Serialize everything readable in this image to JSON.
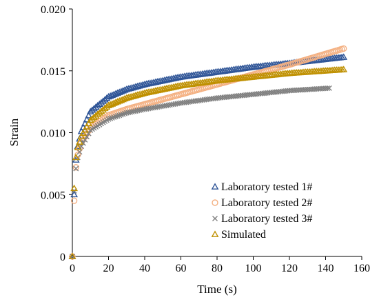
{
  "chart_data": {
    "type": "scatter",
    "xlabel": "Time (s)",
    "ylabel": "Strain",
    "xlim": [
      0,
      160
    ],
    "ylim": [
      0,
      0.02
    ],
    "x_ticks": [
      "0",
      "20",
      "40",
      "60",
      "80",
      "100",
      "120",
      "140",
      "160"
    ],
    "y_ticks": [
      "0",
      "0.005",
      "0.010",
      "0.015",
      "0.020"
    ],
    "grid": false,
    "legend_position": "bottom-right",
    "series": [
      {
        "name": "Laboratory tested 1#",
        "marker": "triangle",
        "color": "#2f5597",
        "x": [
          0,
          1,
          2,
          3,
          5,
          10,
          20,
          30,
          40,
          60,
          80,
          100,
          120,
          150
        ],
        "y": [
          0,
          0.005,
          0.0078,
          0.0089,
          0.0101,
          0.0117,
          0.0129,
          0.0135,
          0.0139,
          0.0145,
          0.0149,
          0.0153,
          0.0156,
          0.0161
        ]
      },
      {
        "name": "Laboratory tested 2#",
        "marker": "circle",
        "color": "#f4b183",
        "x": [
          0,
          1,
          2,
          3,
          5,
          10,
          20,
          30,
          40,
          60,
          80,
          100,
          120,
          150
        ],
        "y": [
          0,
          0.0045,
          0.0072,
          0.0082,
          0.0092,
          0.0104,
          0.0114,
          0.0119,
          0.0123,
          0.0131,
          0.0139,
          0.0147,
          0.0155,
          0.0168
        ]
      },
      {
        "name": "Laboratory tested 3#",
        "marker": "x",
        "color": "#7f7f7f",
        "x": [
          0,
          1,
          2,
          3,
          5,
          10,
          20,
          30,
          40,
          60,
          80,
          100,
          120,
          142
        ],
        "y": [
          0,
          0.0053,
          0.0071,
          0.008,
          0.0089,
          0.0102,
          0.0111,
          0.0116,
          0.0119,
          0.0124,
          0.0128,
          0.0131,
          0.0134,
          0.0136
        ]
      },
      {
        "name": "Simulated",
        "marker": "triangle",
        "color": "#bf9000",
        "x": [
          0,
          1,
          2,
          3,
          5,
          10,
          20,
          30,
          40,
          60,
          80,
          100,
          120,
          150
        ],
        "y": [
          0,
          0.0055,
          0.008,
          0.0088,
          0.0097,
          0.011,
          0.0122,
          0.0128,
          0.0132,
          0.0138,
          0.0142,
          0.0145,
          0.0148,
          0.0151
        ]
      }
    ]
  }
}
